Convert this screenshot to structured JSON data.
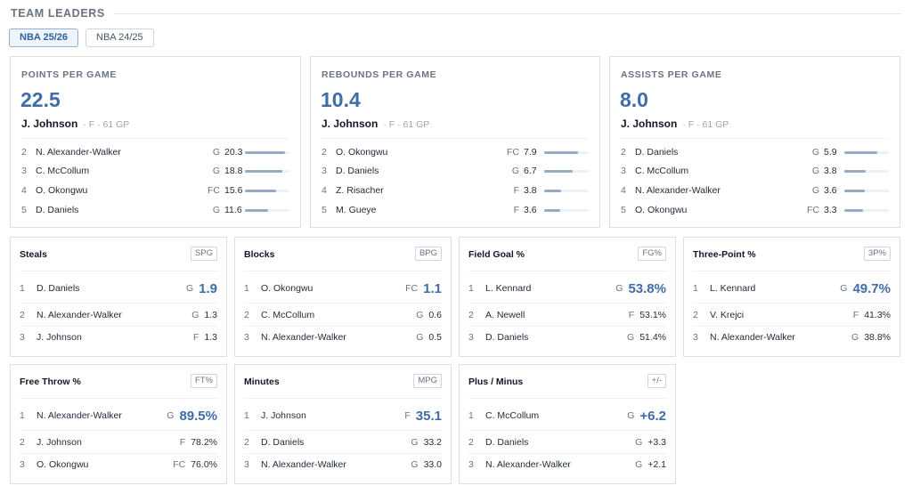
{
  "header": {
    "title": "TEAM LEADERS"
  },
  "seasons": [
    {
      "label": "NBA 25/26",
      "active": true
    },
    {
      "label": "NBA 24/25",
      "active": false
    }
  ],
  "big_cards": [
    {
      "label": "POINTS PER GAME",
      "value": "22.5",
      "leader": {
        "name": "J. Johnson",
        "meta": "· F · 61 GP"
      },
      "rows": [
        {
          "rank": "2",
          "name": "N. Alexander-Walker",
          "pos": "G",
          "val": "20.3",
          "pct": 0.9
        },
        {
          "rank": "3",
          "name": "C. McCollum",
          "pos": "G",
          "val": "18.8",
          "pct": 0.84
        },
        {
          "rank": "4",
          "name": "O. Okongwu",
          "pos": "FC",
          "val": "15.6",
          "pct": 0.69
        },
        {
          "rank": "5",
          "name": "D. Daniels",
          "pos": "G",
          "val": "11.6",
          "pct": 0.52
        }
      ]
    },
    {
      "label": "REBOUNDS PER GAME",
      "value": "10.4",
      "leader": {
        "name": "J. Johnson",
        "meta": "· F · 61 GP"
      },
      "rows": [
        {
          "rank": "2",
          "name": "O. Okongwu",
          "pos": "FC",
          "val": "7.9",
          "pct": 0.76
        },
        {
          "rank": "3",
          "name": "D. Daniels",
          "pos": "G",
          "val": "6.7",
          "pct": 0.64
        },
        {
          "rank": "4",
          "name": "Z. Risacher",
          "pos": "F",
          "val": "3.8",
          "pct": 0.37
        },
        {
          "rank": "5",
          "name": "M. Gueye",
          "pos": "F",
          "val": "3.6",
          "pct": 0.35
        }
      ]
    },
    {
      "label": "ASSISTS PER GAME",
      "value": "8.0",
      "leader": {
        "name": "J. Johnson",
        "meta": "· F · 61 GP"
      },
      "rows": [
        {
          "rank": "2",
          "name": "D. Daniels",
          "pos": "G",
          "val": "5.9",
          "pct": 0.74
        },
        {
          "rank": "3",
          "name": "C. McCollum",
          "pos": "G",
          "val": "3.8",
          "pct": 0.48
        },
        {
          "rank": "4",
          "name": "N. Alexander-Walker",
          "pos": "G",
          "val": "3.6",
          "pct": 0.45
        },
        {
          "rank": "5",
          "name": "O. Okongwu",
          "pos": "FC",
          "val": "3.3",
          "pct": 0.41
        }
      ]
    }
  ],
  "small_cards": [
    {
      "label": "Steals",
      "abbr": "SPG",
      "rows": [
        {
          "rank": "1",
          "name": "D. Daniels",
          "pos": "G",
          "val": "1.9"
        },
        {
          "rank": "2",
          "name": "N. Alexander-Walker",
          "pos": "G",
          "val": "1.3"
        },
        {
          "rank": "3",
          "name": "J. Johnson",
          "pos": "F",
          "val": "1.3"
        }
      ]
    },
    {
      "label": "Blocks",
      "abbr": "BPG",
      "rows": [
        {
          "rank": "1",
          "name": "O. Okongwu",
          "pos": "FC",
          "val": "1.1"
        },
        {
          "rank": "2",
          "name": "C. McCollum",
          "pos": "G",
          "val": "0.6"
        },
        {
          "rank": "3",
          "name": "N. Alexander-Walker",
          "pos": "G",
          "val": "0.5"
        }
      ]
    },
    {
      "label": "Field Goal %",
      "abbr": "FG%",
      "rows": [
        {
          "rank": "1",
          "name": "L. Kennard",
          "pos": "G",
          "val": "53.8%"
        },
        {
          "rank": "2",
          "name": "A. Newell",
          "pos": "F",
          "val": "53.1%"
        },
        {
          "rank": "3",
          "name": "D. Daniels",
          "pos": "G",
          "val": "51.4%"
        }
      ]
    },
    {
      "label": "Three-Point %",
      "abbr": "3P%",
      "rows": [
        {
          "rank": "1",
          "name": "L. Kennard",
          "pos": "G",
          "val": "49.7%"
        },
        {
          "rank": "2",
          "name": "V. Krejci",
          "pos": "F",
          "val": "41.3%"
        },
        {
          "rank": "3",
          "name": "N. Alexander-Walker",
          "pos": "G",
          "val": "38.8%"
        }
      ]
    },
    {
      "label": "Free Throw %",
      "abbr": "FT%",
      "rows": [
        {
          "rank": "1",
          "name": "N. Alexander-Walker",
          "pos": "G",
          "val": "89.5%"
        },
        {
          "rank": "2",
          "name": "J. Johnson",
          "pos": "F",
          "val": "78.2%"
        },
        {
          "rank": "3",
          "name": "O. Okongwu",
          "pos": "FC",
          "val": "76.0%"
        }
      ]
    },
    {
      "label": "Minutes",
      "abbr": "MPG",
      "rows": [
        {
          "rank": "1",
          "name": "J. Johnson",
          "pos": "F",
          "val": "35.1"
        },
        {
          "rank": "2",
          "name": "D. Daniels",
          "pos": "G",
          "val": "33.2"
        },
        {
          "rank": "3",
          "name": "N. Alexander-Walker",
          "pos": "G",
          "val": "33.0"
        }
      ]
    },
    {
      "label": "Plus / Minus",
      "abbr": "+/-",
      "rows": [
        {
          "rank": "1",
          "name": "C. McCollum",
          "pos": "G",
          "val": "+6.2"
        },
        {
          "rank": "2",
          "name": "D. Daniels",
          "pos": "G",
          "val": "+3.3"
        },
        {
          "rank": "3",
          "name": "N. Alexander-Walker",
          "pos": "G",
          "val": "+2.1"
        }
      ]
    }
  ],
  "colors": {
    "accent": "#3f6da8",
    "bar_fill": "#93abc9",
    "border": "#dcdfe4"
  }
}
